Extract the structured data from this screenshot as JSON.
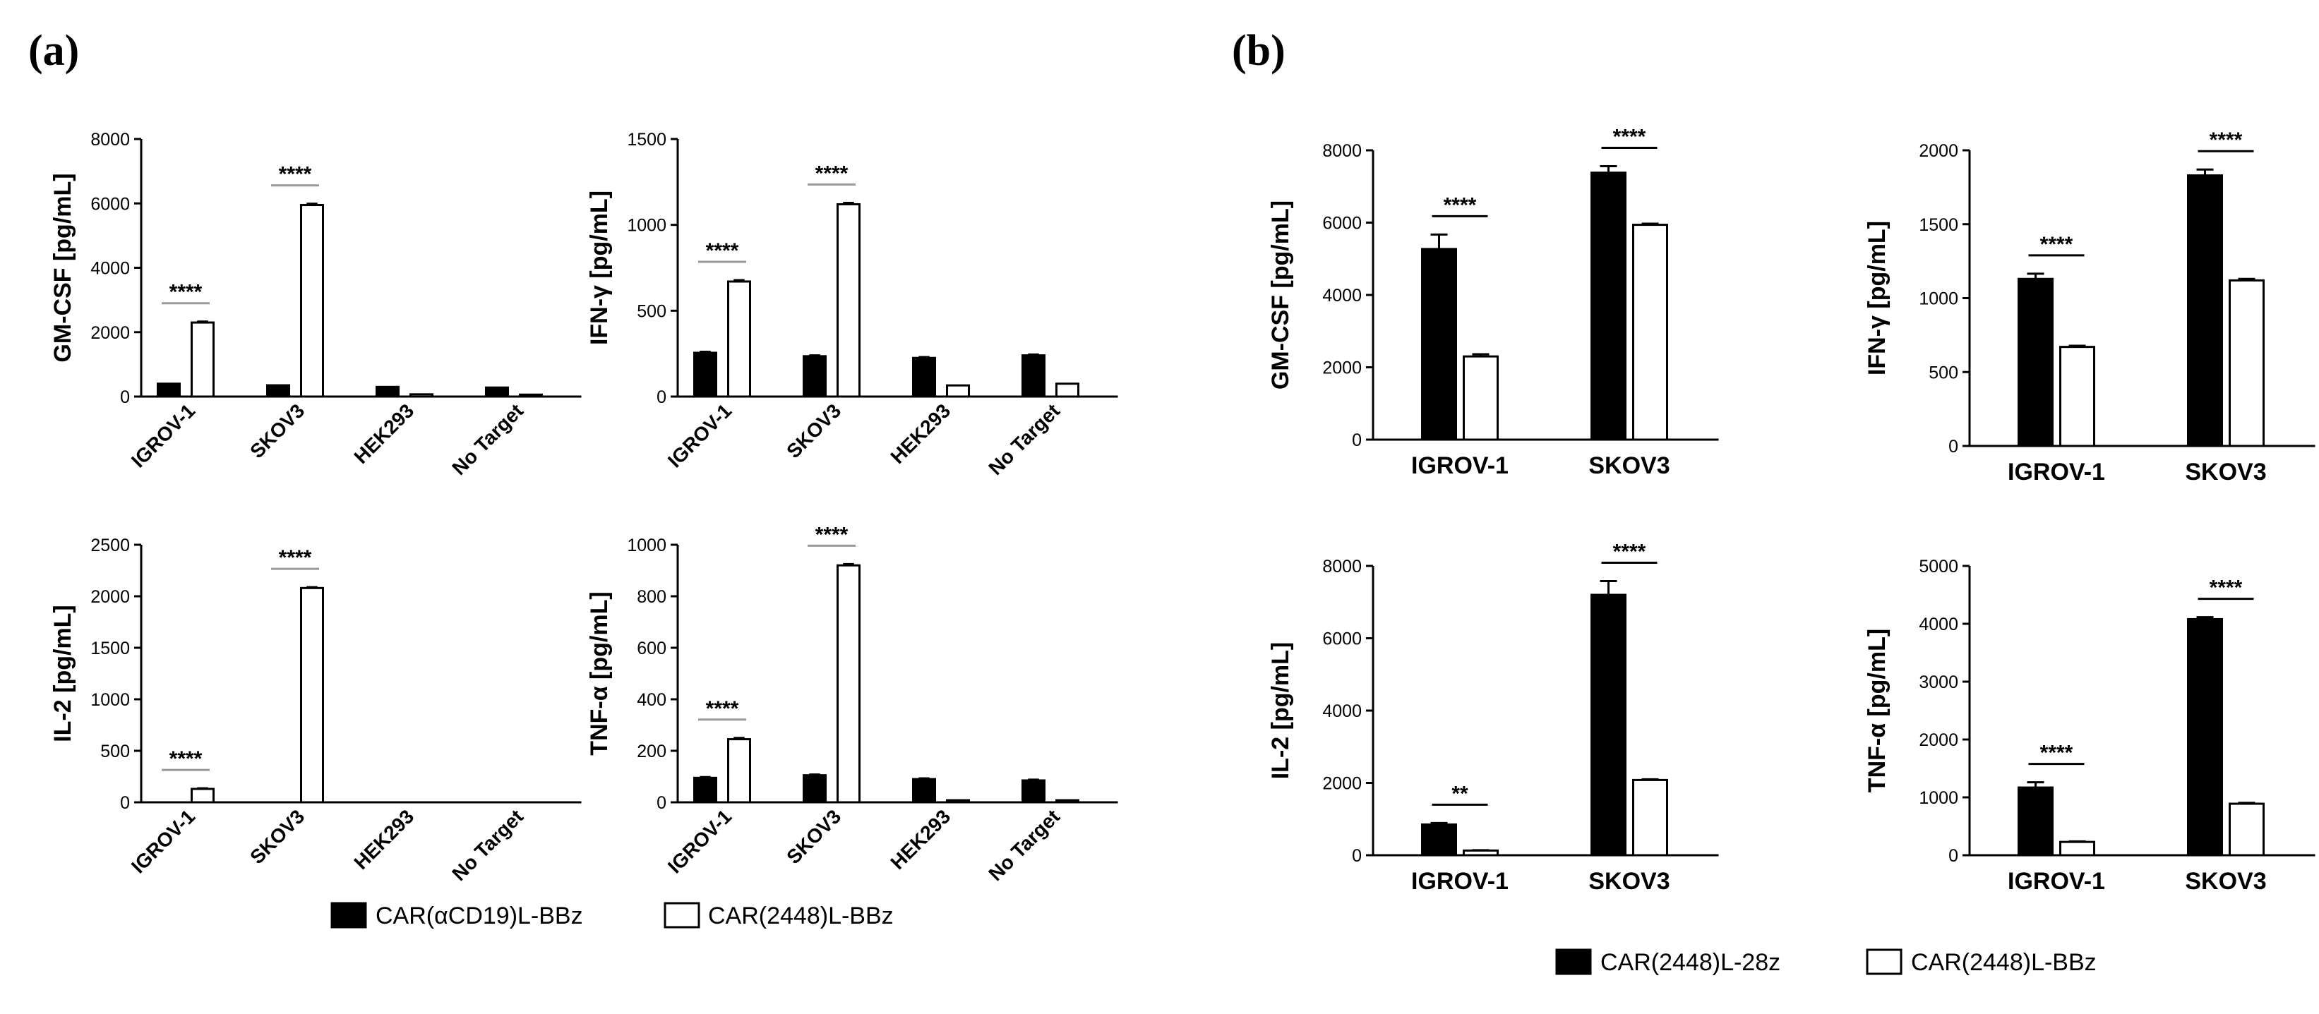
{
  "panels": {
    "a": {
      "label": "(a)"
    },
    "b": {
      "label": "(b)"
    }
  },
  "legends": {
    "a": {
      "items": [
        {
          "label": "CAR(αCD19)L-BBz",
          "color": "#000000"
        },
        {
          "label": "CAR(2448)L-BBz",
          "color": "#ffffff"
        }
      ]
    },
    "b": {
      "items": [
        {
          "label": "CAR(2448)L-28z",
          "color": "#000000"
        },
        {
          "label": "CAR(2448)L-BBz",
          "color": "#ffffff"
        }
      ]
    }
  },
  "chart_data": [
    {
      "id": "a-gmcsf",
      "panel": "a",
      "type": "bar",
      "ylabel": "GM-CSF [pg/mL]",
      "categories": [
        "IGROV-1",
        "SKOV3",
        "HEK293",
        "No Target"
      ],
      "ylim": [
        0,
        8000
      ],
      "yticks": [
        "0",
        "2000",
        "4000",
        "6000",
        "8000"
      ],
      "series": [
        {
          "name": "CAR(αCD19)L-BBz",
          "values": [
            400,
            350,
            300,
            280
          ],
          "errors": [
            0,
            0,
            0,
            0
          ]
        },
        {
          "name": "CAR(2448)L-BBz",
          "values": [
            2300,
            5950,
            70,
            60
          ],
          "errors": [
            30,
            40,
            0,
            0
          ]
        }
      ],
      "significance": [
        {
          "category": "IGROV-1",
          "label": "****"
        },
        {
          "category": "SKOV3",
          "label": "****"
        }
      ]
    },
    {
      "id": "a-ifng",
      "panel": "a",
      "type": "bar",
      "ylabel": "IFN-γ [pg/mL]",
      "categories": [
        "IGROV-1",
        "SKOV3",
        "HEK293",
        "No Target"
      ],
      "ylim": [
        0,
        1500
      ],
      "yticks": [
        "0",
        "500",
        "1000",
        "1500"
      ],
      "series": [
        {
          "name": "CAR(αCD19)L-BBz",
          "values": [
            255,
            235,
            225,
            240
          ],
          "errors": [
            6,
            5,
            5,
            5
          ]
        },
        {
          "name": "CAR(2448)L-BBz",
          "values": [
            670,
            1120,
            65,
            75
          ],
          "errors": [
            8,
            8,
            0,
            0
          ]
        }
      ],
      "significance": [
        {
          "category": "IGROV-1",
          "label": "****"
        },
        {
          "category": "SKOV3",
          "label": "****"
        }
      ]
    },
    {
      "id": "a-il2",
      "panel": "a",
      "type": "bar",
      "ylabel": "IL-2 [pg/mL]",
      "categories": [
        "IGROV-1",
        "SKOV3",
        "HEK293",
        "No Target"
      ],
      "ylim": [
        0,
        2500
      ],
      "yticks": [
        "0",
        "500",
        "1000",
        "1500",
        "2000",
        "2500"
      ],
      "series": [
        {
          "name": "CAR(αCD19)L-BBz",
          "values": [
            0,
            0,
            0,
            0
          ],
          "errors": [
            0,
            0,
            0,
            0
          ]
        },
        {
          "name": "CAR(2448)L-BBz",
          "values": [
            130,
            2080,
            0,
            0
          ],
          "errors": [
            6,
            8,
            0,
            0
          ]
        }
      ],
      "significance": [
        {
          "category": "IGROV-1",
          "label": "****"
        },
        {
          "category": "SKOV3",
          "label": "****"
        }
      ]
    },
    {
      "id": "a-tnfa",
      "panel": "a",
      "type": "bar",
      "ylabel": "TNF-α [pg/mL]",
      "categories": [
        "IGROV-1",
        "SKOV3",
        "HEK293",
        "No Target"
      ],
      "ylim": [
        0,
        1000
      ],
      "yticks": [
        "0",
        "200",
        "400",
        "600",
        "800",
        "1000"
      ],
      "series": [
        {
          "name": "CAR(αCD19)L-BBz",
          "values": [
            95,
            105,
            90,
            85
          ],
          "errors": [
            3,
            3,
            3,
            3
          ]
        },
        {
          "name": "CAR(2448)L-BBz",
          "values": [
            245,
            920,
            8,
            8
          ],
          "errors": [
            5,
            5,
            0,
            0
          ]
        }
      ],
      "significance": [
        {
          "category": "IGROV-1",
          "label": "****"
        },
        {
          "category": "SKOV3",
          "label": "****"
        }
      ]
    },
    {
      "id": "b-gmcsf",
      "panel": "b",
      "type": "bar",
      "ylabel": "GM-CSF [pg/mL]",
      "categories": [
        "IGROV-1",
        "SKOV3"
      ],
      "ylim": [
        0,
        8000
      ],
      "yticks": [
        "0",
        "2000",
        "4000",
        "6000",
        "8000"
      ],
      "series": [
        {
          "name": "CAR(2448)L-28z",
          "values": [
            5270,
            7380
          ],
          "errors": [
            400,
            180
          ]
        },
        {
          "name": "CAR(2448)L-BBz",
          "values": [
            2300,
            5940
          ],
          "errors": [
            60,
            30
          ]
        }
      ],
      "significance": [
        {
          "category": "IGROV-1",
          "label": "****"
        },
        {
          "category": "SKOV3",
          "label": "****"
        }
      ]
    },
    {
      "id": "b-ifng",
      "panel": "b",
      "type": "bar",
      "ylabel": "IFN-γ [pg/mL]",
      "categories": [
        "IGROV-1",
        "SKOV3"
      ],
      "ylim": [
        0,
        2000
      ],
      "yticks": [
        "0",
        "500",
        "1000",
        "1500",
        "2000"
      ],
      "series": [
        {
          "name": "CAR(2448)L-28z",
          "values": [
            1130,
            1830
          ],
          "errors": [
            35,
            40
          ]
        },
        {
          "name": "CAR(2448)L-BBz",
          "values": [
            670,
            1120
          ],
          "errors": [
            8,
            10
          ]
        }
      ],
      "significance": [
        {
          "category": "IGROV-1",
          "label": "****"
        },
        {
          "category": "SKOV3",
          "label": "****"
        }
      ]
    },
    {
      "id": "b-il2",
      "panel": "b",
      "type": "bar",
      "ylabel": "IL-2 [pg/mL]",
      "categories": [
        "IGROV-1",
        "SKOV3"
      ],
      "ylim": [
        0,
        8000
      ],
      "yticks": [
        "0",
        "2000",
        "4000",
        "6000",
        "8000"
      ],
      "series": [
        {
          "name": "CAR(2448)L-28z",
          "values": [
            850,
            7200
          ],
          "errors": [
            40,
            380
          ]
        },
        {
          "name": "CAR(2448)L-BBz",
          "values": [
            130,
            2080
          ],
          "errors": [
            10,
            20
          ]
        }
      ],
      "significance": [
        {
          "category": "IGROV-1",
          "label": "**"
        },
        {
          "category": "SKOV3",
          "label": "****"
        }
      ]
    },
    {
      "id": "b-tnfa",
      "panel": "b",
      "type": "bar",
      "ylabel": "TNF-α [pg/mL]",
      "categories": [
        "IGROV-1",
        "SKOV3"
      ],
      "ylim": [
        0,
        5000
      ],
      "yticks": [
        "0",
        "1000",
        "2000",
        "3000",
        "4000",
        "5000"
      ],
      "series": [
        {
          "name": "CAR(2448)L-28z",
          "values": [
            1170,
            4080
          ],
          "errors": [
            90,
            35
          ]
        },
        {
          "name": "CAR(2448)L-BBz",
          "values": [
            230,
            890
          ],
          "errors": [
            10,
            15
          ]
        }
      ],
      "significance": [
        {
          "category": "IGROV-1",
          "label": "****"
        },
        {
          "category": "SKOV3",
          "label": "****"
        }
      ]
    }
  ]
}
